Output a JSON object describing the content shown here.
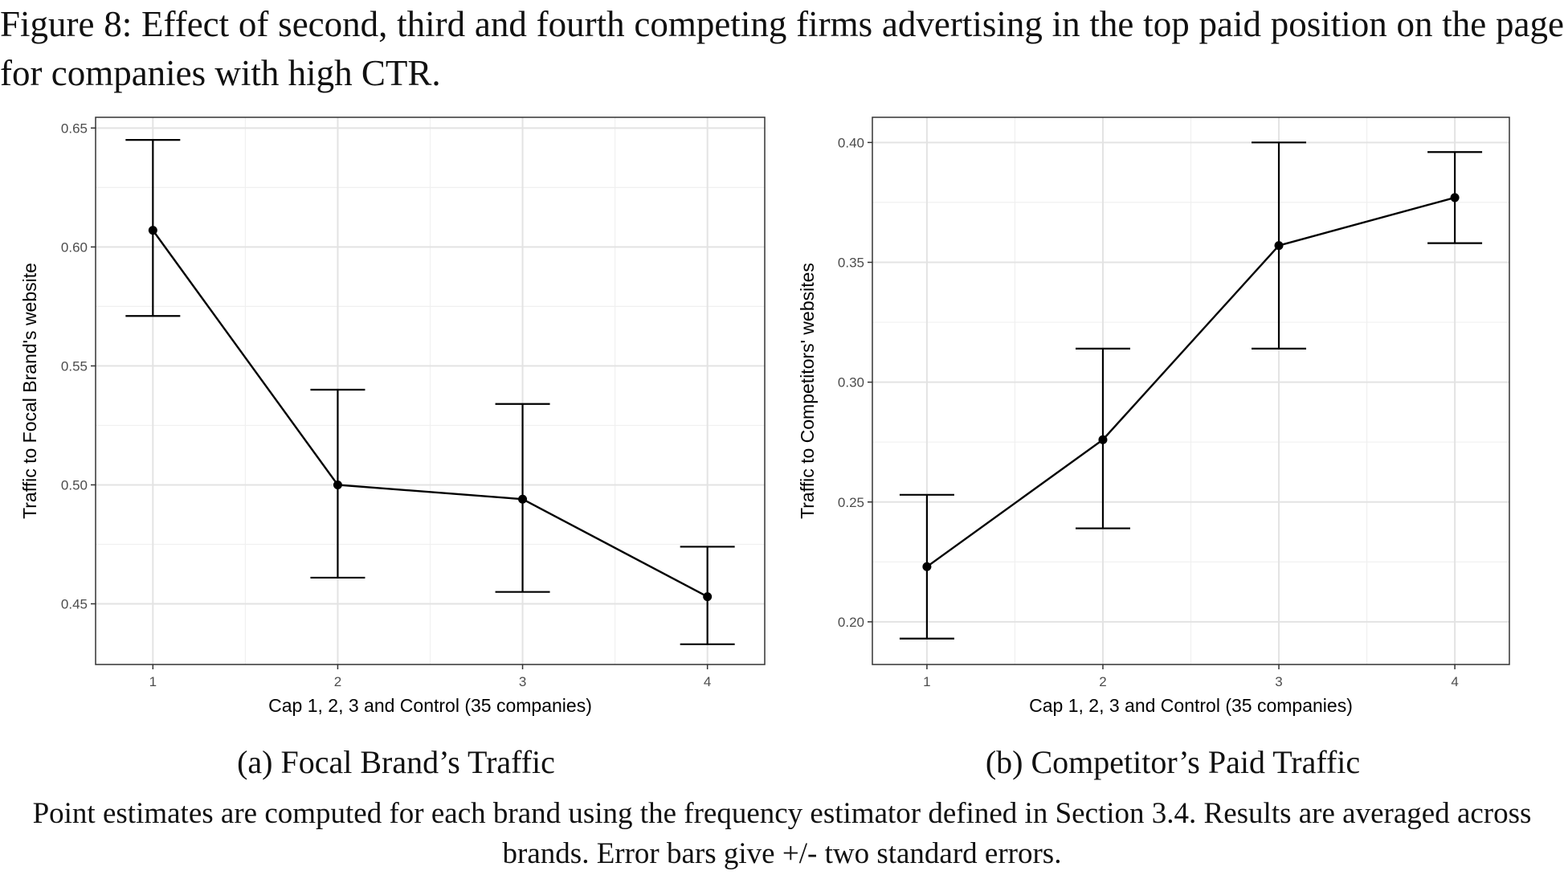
{
  "figure": {
    "title": "Figure 8: Effect of second, third and fourth competing firms advertising in the top paid position on the page for companies with high CTR.",
    "note": "Point estimates are computed for each brand using the frequency estimator defined in Section 3.4. Results are averaged across brands. Error bars give +/- two standard errors."
  },
  "chart_data": [
    {
      "type": "line",
      "caption": "(a) Focal Brand’s Traffic",
      "xlabel": "Cap 1, 2, 3 and Control (35 companies)",
      "ylabel": "Traffic to Focal Brand's website",
      "x": [
        1,
        2,
        3,
        4
      ],
      "xticks": [
        "1",
        "2",
        "3",
        "4"
      ],
      "xlim": [
        0.69,
        4.31
      ],
      "ylim": [
        0.4245,
        0.6545
      ],
      "yticks": [
        0.45,
        0.5,
        0.55,
        0.6,
        0.65
      ],
      "ytick_labels": [
        "0.45",
        "0.50",
        "0.55",
        "0.60",
        "0.65"
      ],
      "grid": true,
      "series": [
        {
          "values": [
            0.607,
            0.5,
            0.494,
            0.453
          ],
          "error_low": [
            0.571,
            0.461,
            0.455,
            0.433
          ],
          "error_high": [
            0.645,
            0.54,
            0.534,
            0.474
          ]
        }
      ]
    },
    {
      "type": "line",
      "caption": "(b) Competitor’s Paid Traffic",
      "xlabel": "Cap 1, 2, 3 and Control (35 companies)",
      "ylabel": "Traffic to Competitors' websites",
      "x": [
        1,
        2,
        3,
        4
      ],
      "xticks": [
        "1",
        "2",
        "3",
        "4"
      ],
      "xlim": [
        0.69,
        4.31
      ],
      "ylim": [
        0.1822,
        0.4105
      ],
      "yticks": [
        0.2,
        0.25,
        0.3,
        0.35,
        0.4
      ],
      "ytick_labels": [
        "0.20",
        "0.25",
        "0.30",
        "0.35",
        "0.40"
      ],
      "grid": true,
      "series": [
        {
          "values": [
            0.223,
            0.276,
            0.357,
            0.377
          ],
          "error_low": [
            0.193,
            0.239,
            0.314,
            0.358
          ],
          "error_high": [
            0.253,
            0.314,
            0.4,
            0.396
          ]
        }
      ]
    }
  ]
}
